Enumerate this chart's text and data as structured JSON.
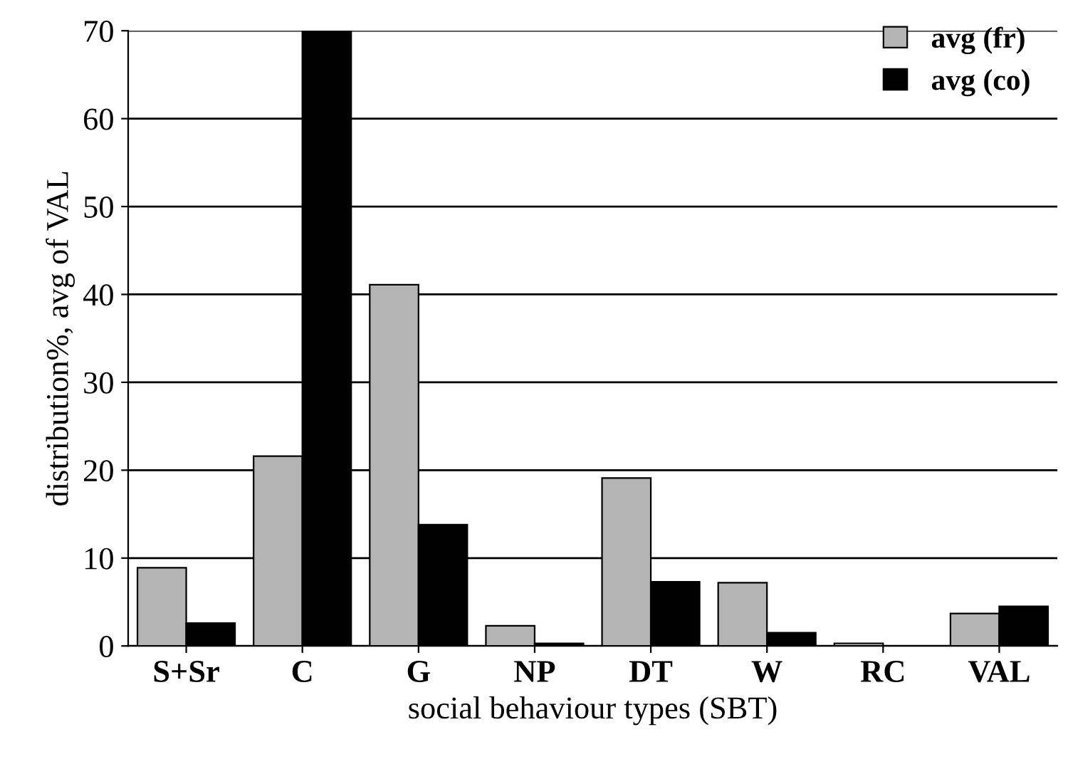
{
  "chart_data": {
    "type": "bar",
    "xlabel": "social behaviour types (SBT)",
    "ylabel": "distribution%, avg of VAL",
    "categories": [
      "S+Sr",
      "C",
      "G",
      "NP",
      "DT",
      "W",
      "RC",
      "VAL"
    ],
    "series": [
      {
        "name": "avg (fr)",
        "color": "#b4b4b4",
        "values": [
          8.9,
          21.6,
          41.1,
          2.3,
          19.1,
          7.2,
          0.3,
          3.7
        ]
      },
      {
        "name": "avg (co)",
        "color": "#000000",
        "values": [
          2.6,
          70,
          13.8,
          0.3,
          7.3,
          1.5,
          null,
          4.5
        ]
      }
    ],
    "ylim": [
      0,
      70
    ],
    "yticks": [
      0,
      10,
      20,
      30,
      40,
      50,
      60,
      70
    ],
    "grid": "y",
    "legend": "top right"
  }
}
